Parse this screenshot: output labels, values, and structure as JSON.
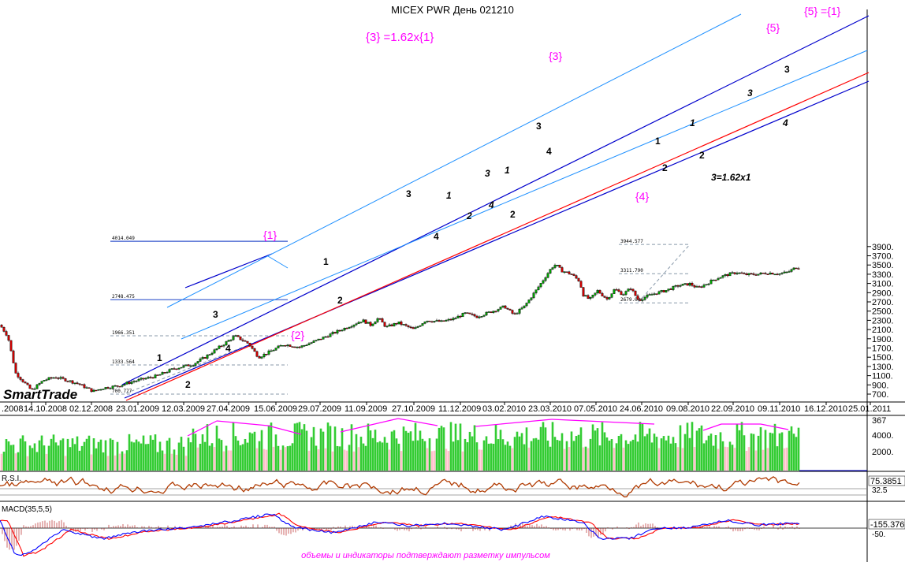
{
  "chart_data": {
    "type": "candlestick",
    "title": "MICEX PWR День 021210",
    "brand": "SmartTrade",
    "footer_note": "объемы и индикаторы подтверждают разметку импульсом",
    "ylim": [
      650,
      4100
    ],
    "y_ticks": [
      "3900.",
      "3700.",
      "3500.",
      "3300.",
      "3100.",
      "2900.",
      "2700.",
      "2500.",
      "2300.",
      "2100.",
      "1900.",
      "1700.",
      "1500.",
      "1300.",
      "1100.",
      "900.",
      "700."
    ],
    "x_ticks": [
      ".2008",
      "14.10.2008",
      "02.12.2008",
      "23.01.2009",
      "12.03.2009",
      "27.04.2009",
      "15.06.2009",
      "29.07.2009",
      "11.09.2009",
      "27.10.2009",
      "11.12.2009",
      "03.02.2010",
      "23.03.2010",
      "07.05.2010",
      "24.06.2010",
      "09.08.2010",
      "22.09.2010",
      "09.11.2010",
      "16.12.2010",
      "25.01.2011"
    ],
    "fib_levels": [
      {
        "label": "4014.049",
        "value": 4014
      },
      {
        "label": "2748.475",
        "value": 2748
      },
      {
        "label": "1966.351",
        "value": 1966
      },
      {
        "label": "1333.564",
        "value": 1333
      },
      {
        "label": "700.777",
        "value": 701
      },
      {
        "label": "3944.577",
        "value": 3945
      },
      {
        "label": "3311.790",
        "value": 3312
      },
      {
        "label": "2679.004",
        "value": 2679
      }
    ],
    "price_anchors": [
      [
        0,
        2200
      ],
      [
        10,
        1950
      ],
      [
        20,
        1150
      ],
      [
        40,
        780
      ],
      [
        55,
        1000
      ],
      [
        70,
        1070
      ],
      [
        85,
        1000
      ],
      [
        100,
        920
      ],
      [
        118,
        760
      ],
      [
        130,
        830
      ],
      [
        150,
        880
      ],
      [
        170,
        980
      ],
      [
        200,
        1100
      ],
      [
        220,
        1250
      ],
      [
        245,
        1350
      ],
      [
        260,
        1500
      ],
      [
        285,
        1800
      ],
      [
        298,
        1960
      ],
      [
        315,
        1800
      ],
      [
        328,
        1500
      ],
      [
        340,
        1600
      ],
      [
        360,
        1780
      ],
      [
        380,
        1720
      ],
      [
        400,
        1850
      ],
      [
        420,
        2000
      ],
      [
        440,
        2150
      ],
      [
        460,
        2300
      ],
      [
        470,
        2200
      ],
      [
        480,
        2350
      ],
      [
        490,
        2150
      ],
      [
        505,
        2250
      ],
      [
        525,
        2100
      ],
      [
        540,
        2300
      ],
      [
        560,
        2270
      ],
      [
        575,
        2330
      ],
      [
        590,
        2450
      ],
      [
        605,
        2380
      ],
      [
        625,
        2500
      ],
      [
        640,
        2600
      ],
      [
        652,
        2420
      ],
      [
        665,
        2600
      ],
      [
        680,
        2950
      ],
      [
        690,
        3200
      ],
      [
        700,
        3450
      ],
      [
        705,
        3510
      ],
      [
        712,
        3380
      ],
      [
        725,
        3300
      ],
      [
        735,
        3150
      ],
      [
        740,
        2850
      ],
      [
        748,
        2750
      ],
      [
        758,
        2940
      ],
      [
        770,
        2760
      ],
      [
        780,
        2980
      ],
      [
        790,
        2860
      ],
      [
        800,
        3000
      ],
      [
        810,
        2730
      ],
      [
        820,
        2820
      ],
      [
        830,
        2880
      ],
      [
        845,
        2950
      ],
      [
        860,
        3050
      ],
      [
        875,
        3090
      ],
      [
        885,
        3000
      ],
      [
        895,
        3080
      ],
      [
        905,
        3180
      ],
      [
        915,
        3250
      ],
      [
        925,
        3300
      ],
      [
        935,
        3340
      ],
      [
        945,
        3290
      ],
      [
        960,
        3300
      ],
      [
        975,
        3330
      ],
      [
        990,
        3310
      ],
      [
        1000,
        3350
      ],
      [
        1010,
        3450
      ]
    ],
    "wave_labels": [
      {
        "text": "{3} =1.62x{1}",
        "color": "#ff00ff"
      },
      {
        "text": "{3}",
        "color": "#ff00ff"
      },
      {
        "text": "{5}",
        "color": "#ff00ff"
      },
      {
        "text": "{5} ={1}",
        "color": "#ff00ff"
      },
      {
        "text": "{1}",
        "color": "#ff00ff"
      },
      {
        "text": "{2}",
        "color": "#ff00ff"
      },
      {
        "text": "{4}",
        "color": "#ff00ff"
      },
      {
        "text": "3=1.62x1",
        "color": "#000000"
      },
      {
        "text": "1",
        "color": "#000000"
      },
      {
        "text": "2",
        "color": "#000000"
      },
      {
        "text": "3",
        "color": "#000000"
      },
      {
        "text": "4",
        "color": "#000000"
      }
    ],
    "volume": {
      "ticks": [
        "367",
        "4000.",
        "2000."
      ],
      "color": "#33cc33"
    },
    "rsi": {
      "label": "R.S.I.",
      "value": "75.3851",
      "level": "32.5",
      "color": "#b03a00"
    },
    "macd": {
      "label": "MACD(35,5,5)",
      "value": "-155.376",
      "level": "-50.",
      "line_color": "#0000ff",
      "signal_color": "#ff0000"
    },
    "colors": {
      "bull": "#00a000",
      "bear": "#cc0000",
      "channel_dark": "#0000cc",
      "channel_light": "#1e90ff",
      "support": "#ff0000",
      "highlight": "#ff00ff"
    }
  }
}
